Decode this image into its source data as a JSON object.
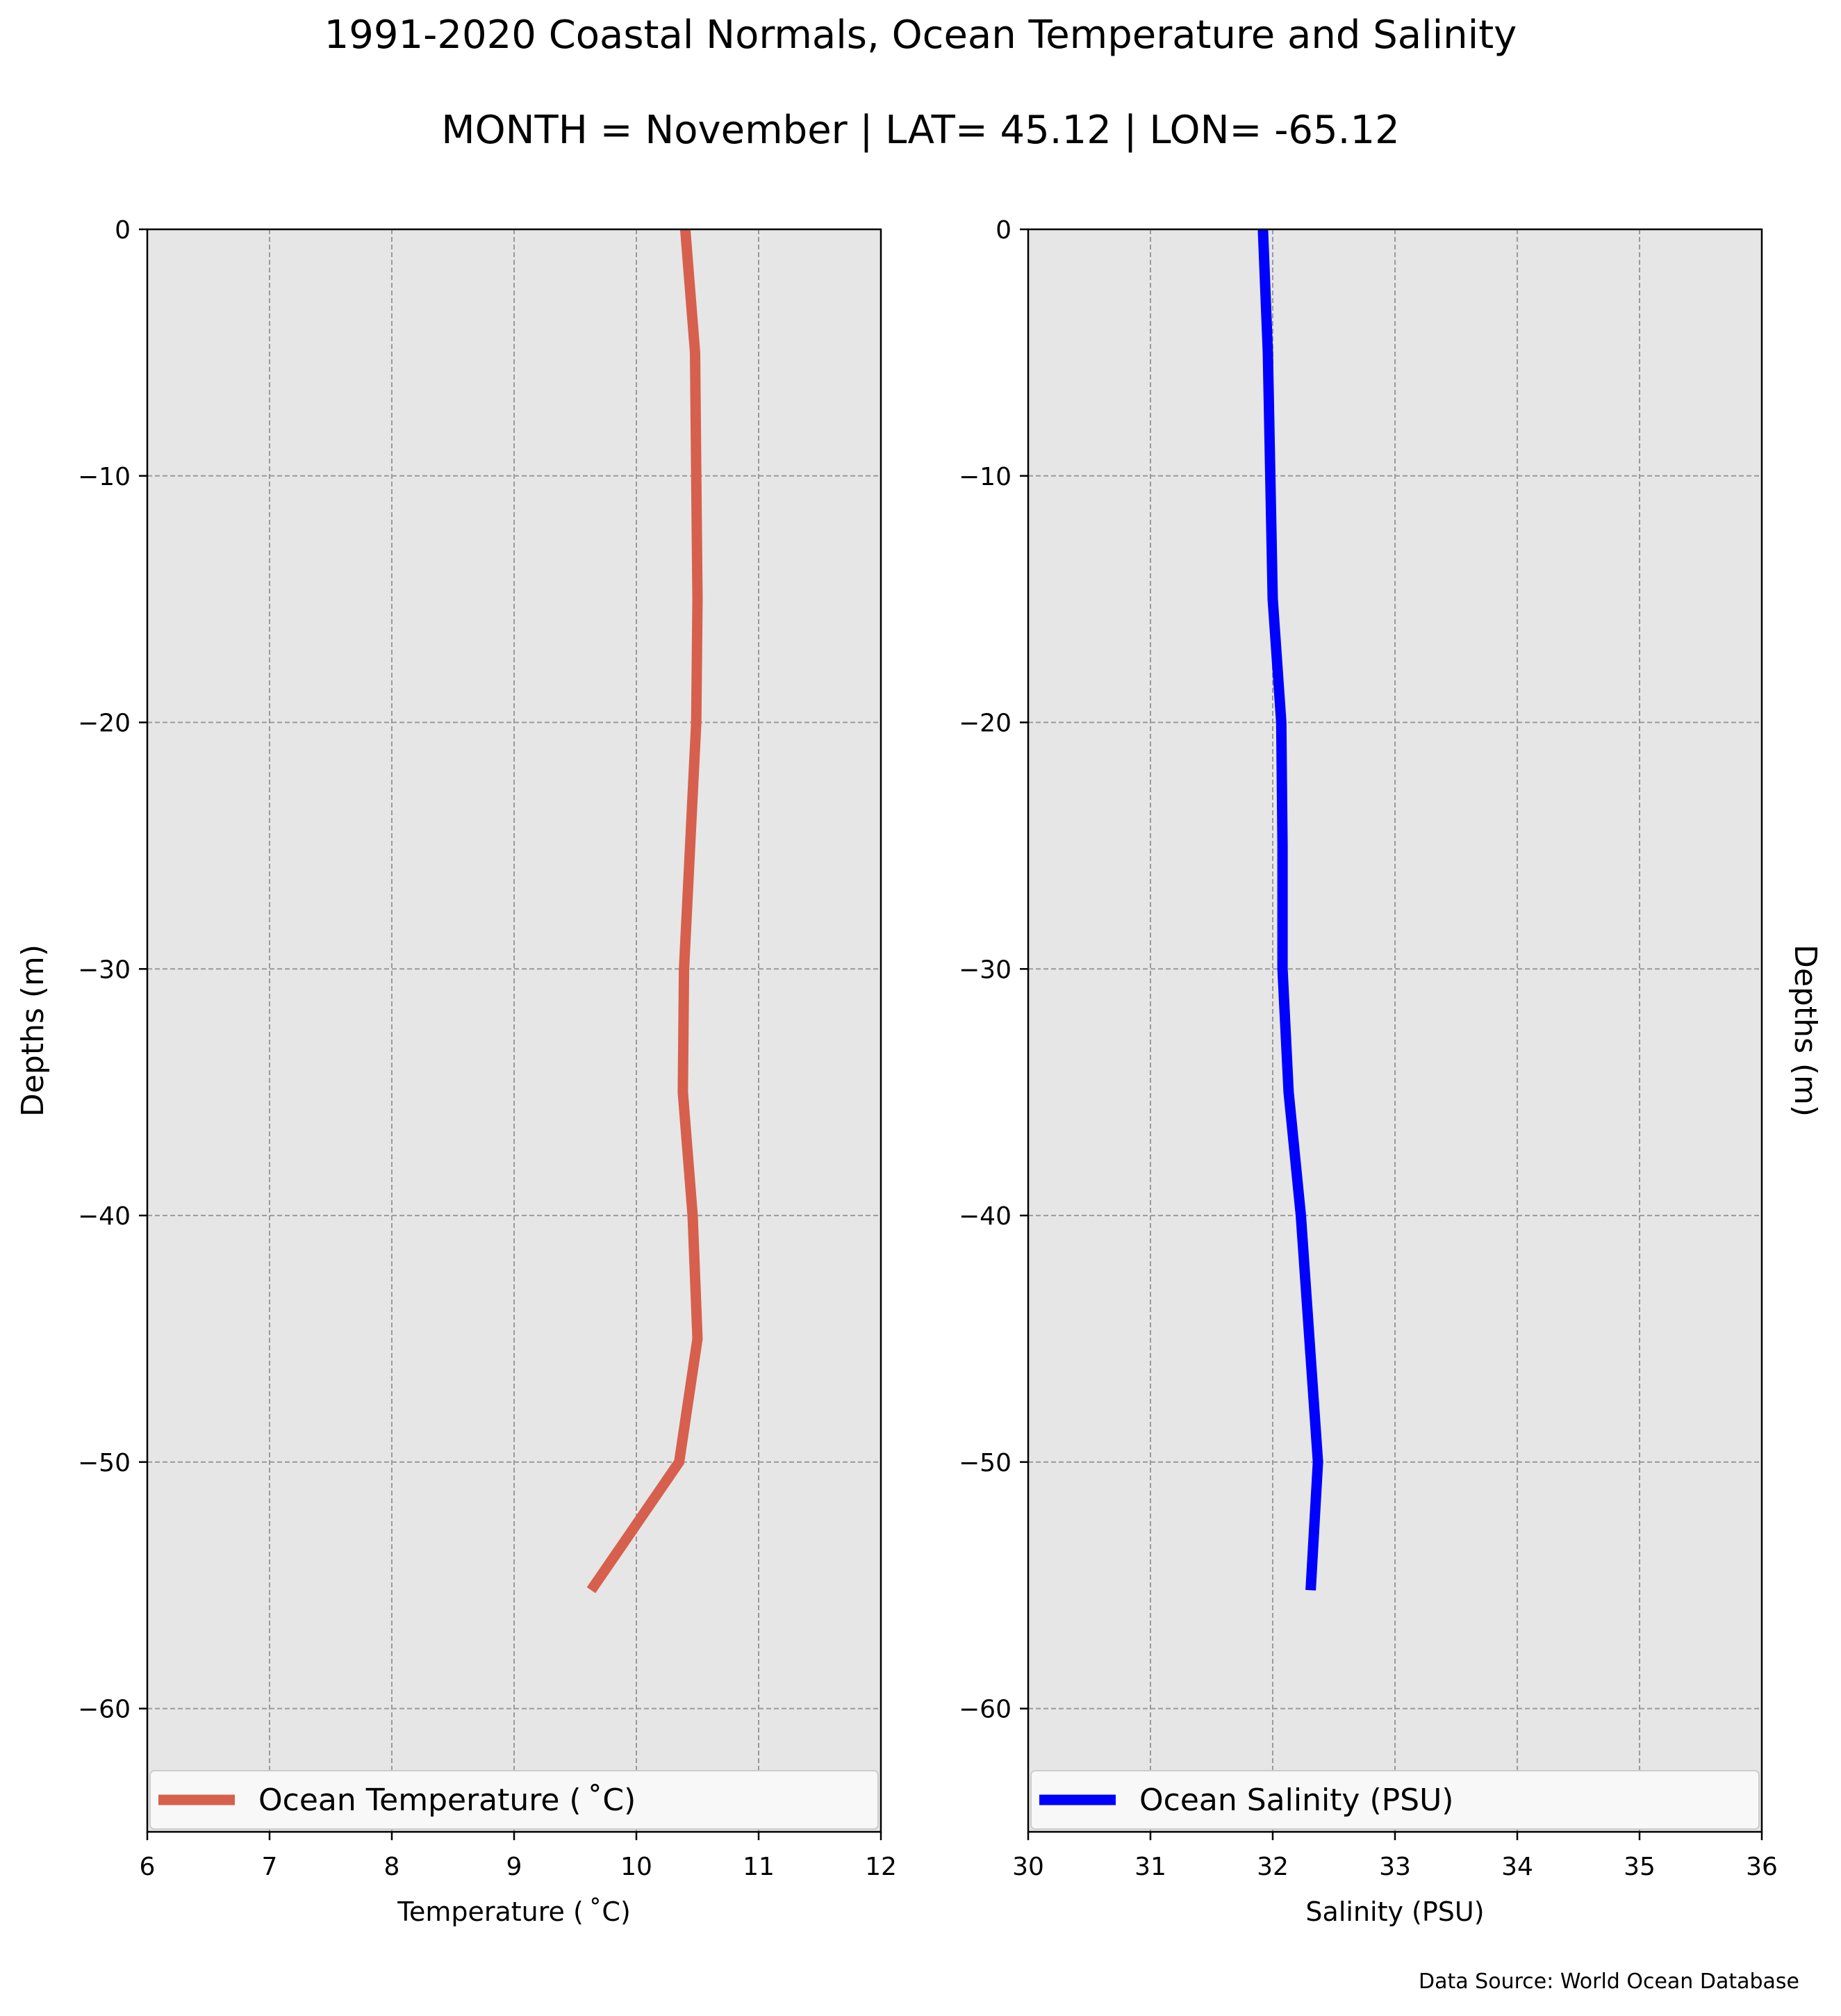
{
  "title": "1991-2020 Coastal Normals, Ocean Temperature and Salinity",
  "subtitle": "MONTH = November | LAT= 45.12 | LON= -65.12",
  "source": "Data Source: World Ocean Database",
  "chart_data": [
    {
      "type": "line",
      "orientation": "vertical-profile",
      "xlabel": "Temperature ($^\\circ$C)",
      "xlabel_display": "Temperature ( ˚C)",
      "ylabel": "Depths (m)",
      "ylabel_side": "left",
      "xlim": [
        6,
        12
      ],
      "ylim": [
        -65,
        0
      ],
      "xticks": [
        6,
        7,
        8,
        9,
        10,
        11,
        12
      ],
      "yticks": [
        0,
        -10,
        -20,
        -30,
        -40,
        -50,
        -60
      ],
      "grid": true,
      "legend_position": "bottom",
      "background": "#e6e6e6",
      "series": [
        {
          "name": "Ocean Temperature ( ˚C)",
          "color": "#d6604d",
          "depth": [
            0,
            -5,
            -10,
            -15,
            -20,
            -25,
            -30,
            -35,
            -40,
            -45,
            -50,
            -55.2
          ],
          "value": [
            10.4,
            10.48,
            10.49,
            10.5,
            10.49,
            10.44,
            10.39,
            10.38,
            10.46,
            10.5,
            10.35,
            9.63
          ]
        }
      ]
    },
    {
      "type": "line",
      "orientation": "vertical-profile",
      "xlabel": "Salinity (PSU)",
      "xlabel_display": "Salinity (PSU)",
      "ylabel": "Depths (m)",
      "ylabel_side": "right",
      "xlim": [
        30,
        36
      ],
      "ylim": [
        -65,
        0
      ],
      "xticks": [
        30,
        31,
        32,
        33,
        34,
        35,
        36
      ],
      "yticks": [
        0,
        -10,
        -20,
        -30,
        -40,
        -50,
        -60
      ],
      "grid": true,
      "legend_position": "bottom",
      "background": "#e6e6e6",
      "series": [
        {
          "name": "Ocean Salinity (PSU)",
          "color": "#0000ff",
          "depth": [
            0,
            -5,
            -10,
            -15,
            -20,
            -25,
            -30,
            -35,
            -40,
            -45,
            -50,
            -55.2
          ],
          "value": [
            31.92,
            31.96,
            31.98,
            32.0,
            32.07,
            32.08,
            32.08,
            32.13,
            32.23,
            32.3,
            32.37,
            32.31
          ]
        }
      ]
    }
  ]
}
